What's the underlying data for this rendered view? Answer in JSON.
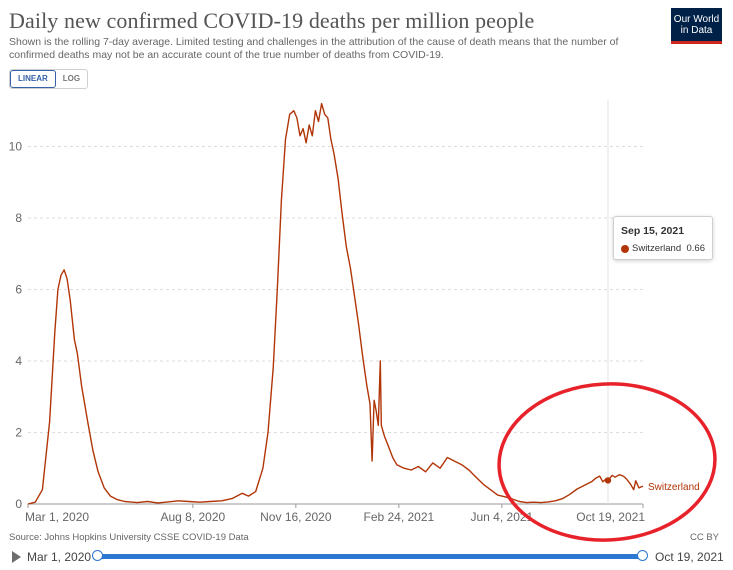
{
  "header": {
    "title": "Daily new confirmed COVID-19 deaths per million people",
    "subtitle": "Shown is the rolling 7-day average. Limited testing and challenges in the attribution of the cause of death means that the number of confirmed deaths may not be an accurate count of the true number of deaths from COVID-19.",
    "logo_line1": "Our World",
    "logo_line2": "in Data"
  },
  "scale_toggle": {
    "linear_label": "LINEAR",
    "log_label": "LOG",
    "selected": "LINEAR"
  },
  "tooltip": {
    "date": "Sep 15, 2021",
    "series": "Switzerland",
    "value": "0.66"
  },
  "footer": {
    "source": "Source: Johns Hopkins University CSSE COVID-19 Data",
    "license": "CC BY"
  },
  "timeline": {
    "start_label": "Mar 1, 2020",
    "end_label": "Oct 19, 2021"
  },
  "colors": {
    "series": "#b13507",
    "annotation_circle": "#e8222a",
    "slider": "#2d76d1",
    "logo_bg": "#002147",
    "logo_accent": "#ce261e"
  },
  "chart_data": {
    "type": "line",
    "title": "Daily new confirmed COVID-19 deaths per million people",
    "ylabel": "",
    "xlabel": "",
    "ylim": [
      0,
      11.3
    ],
    "y_ticks": [
      0,
      2,
      4,
      6,
      8,
      10
    ],
    "x_ticks": [
      "2020-03-01",
      "2020-08-08",
      "2020-11-16",
      "2021-02-24",
      "2021-06-04",
      "2021-10-19"
    ],
    "x_tick_labels": [
      "Mar 1, 2020",
      "Aug 8, 2020",
      "Nov 16, 2020",
      "Feb 24, 2021",
      "Jun 4, 2021",
      "Oct 19, 2021"
    ],
    "x_range": [
      "2020-03-01",
      "2021-10-19"
    ],
    "grid": "horizontal dashed",
    "legend": "inline label at line end",
    "series": [
      {
        "name": "Switzerland",
        "points": [
          [
            "2020-03-01",
            0
          ],
          [
            "2020-03-08",
            0.05
          ],
          [
            "2020-03-15",
            0.4
          ],
          [
            "2020-03-22",
            2.3
          ],
          [
            "2020-03-27",
            4.8
          ],
          [
            "2020-03-30",
            6.0
          ],
          [
            "2020-04-02",
            6.4
          ],
          [
            "2020-04-05",
            6.55
          ],
          [
            "2020-04-08",
            6.3
          ],
          [
            "2020-04-11",
            5.7
          ],
          [
            "2020-04-15",
            4.6
          ],
          [
            "2020-04-18",
            4.2
          ],
          [
            "2020-04-22",
            3.3
          ],
          [
            "2020-04-28",
            2.3
          ],
          [
            "2020-05-03",
            1.5
          ],
          [
            "2020-05-08",
            0.9
          ],
          [
            "2020-05-14",
            0.45
          ],
          [
            "2020-05-20",
            0.22
          ],
          [
            "2020-05-27",
            0.12
          ],
          [
            "2020-06-03",
            0.07
          ],
          [
            "2020-06-15",
            0.04
          ],
          [
            "2020-06-25",
            0.07
          ],
          [
            "2020-07-05",
            0.03
          ],
          [
            "2020-07-15",
            0.06
          ],
          [
            "2020-07-25",
            0.09
          ],
          [
            "2020-08-04",
            0.07
          ],
          [
            "2020-08-15",
            0.05
          ],
          [
            "2020-08-25",
            0.07
          ],
          [
            "2020-09-05",
            0.09
          ],
          [
            "2020-09-15",
            0.15
          ],
          [
            "2020-09-25",
            0.3
          ],
          [
            "2020-10-01",
            0.22
          ],
          [
            "2020-10-08",
            0.35
          ],
          [
            "2020-10-15",
            1.0
          ],
          [
            "2020-10-20",
            2.0
          ],
          [
            "2020-10-25",
            3.8
          ],
          [
            "2020-10-29",
            6.0
          ],
          [
            "2020-11-02",
            8.5
          ],
          [
            "2020-11-06",
            10.2
          ],
          [
            "2020-11-10",
            10.9
          ],
          [
            "2020-11-14",
            11.0
          ],
          [
            "2020-11-17",
            10.8
          ],
          [
            "2020-11-20",
            10.3
          ],
          [
            "2020-11-23",
            10.5
          ],
          [
            "2020-11-26",
            10.1
          ],
          [
            "2020-11-29",
            10.6
          ],
          [
            "2020-12-02",
            10.3
          ],
          [
            "2020-12-05",
            11.0
          ],
          [
            "2020-12-08",
            10.7
          ],
          [
            "2020-12-11",
            11.2
          ],
          [
            "2020-12-14",
            10.9
          ],
          [
            "2020-12-17",
            10.8
          ],
          [
            "2020-12-20",
            10.2
          ],
          [
            "2020-12-23",
            9.8
          ],
          [
            "2020-12-27",
            9.1
          ],
          [
            "2020-12-31",
            8.1
          ],
          [
            "2021-01-04",
            7.2
          ],
          [
            "2021-01-08",
            6.6
          ],
          [
            "2021-01-12",
            5.8
          ],
          [
            "2021-01-16",
            5.0
          ],
          [
            "2021-01-20",
            4.1
          ],
          [
            "2021-01-24",
            3.3
          ],
          [
            "2021-01-27",
            2.8
          ],
          [
            "2021-01-29",
            1.2
          ],
          [
            "2021-01-31",
            2.9
          ],
          [
            "2021-02-02",
            2.6
          ],
          [
            "2021-02-04",
            2.2
          ],
          [
            "2021-02-06",
            4.0
          ],
          [
            "2021-02-07",
            2.2
          ],
          [
            "2021-02-10",
            1.9
          ],
          [
            "2021-02-14",
            1.6
          ],
          [
            "2021-02-18",
            1.3
          ],
          [
            "2021-02-22",
            1.1
          ],
          [
            "2021-03-01",
            1.0
          ],
          [
            "2021-03-08",
            0.95
          ],
          [
            "2021-03-15",
            1.05
          ],
          [
            "2021-03-22",
            0.9
          ],
          [
            "2021-03-29",
            1.15
          ],
          [
            "2021-04-05",
            1.0
          ],
          [
            "2021-04-12",
            1.3
          ],
          [
            "2021-04-19",
            1.2
          ],
          [
            "2021-04-26",
            1.1
          ],
          [
            "2021-05-03",
            0.95
          ],
          [
            "2021-05-10",
            0.75
          ],
          [
            "2021-05-17",
            0.55
          ],
          [
            "2021-05-24",
            0.4
          ],
          [
            "2021-05-31",
            0.25
          ],
          [
            "2021-06-07",
            0.2
          ],
          [
            "2021-06-14",
            0.14
          ],
          [
            "2021-06-21",
            0.07
          ],
          [
            "2021-06-28",
            0.04
          ],
          [
            "2021-07-05",
            0.05
          ],
          [
            "2021-07-12",
            0.04
          ],
          [
            "2021-07-19",
            0.06
          ],
          [
            "2021-07-26",
            0.09
          ],
          [
            "2021-08-02",
            0.15
          ],
          [
            "2021-08-09",
            0.27
          ],
          [
            "2021-08-16",
            0.42
          ],
          [
            "2021-08-23",
            0.52
          ],
          [
            "2021-08-30",
            0.62
          ],
          [
            "2021-09-03",
            0.72
          ],
          [
            "2021-09-07",
            0.78
          ],
          [
            "2021-09-10",
            0.62
          ],
          [
            "2021-09-13",
            0.7
          ],
          [
            "2021-09-15",
            0.66
          ],
          [
            "2021-09-19",
            0.8
          ],
          [
            "2021-09-22",
            0.75
          ],
          [
            "2021-09-26",
            0.82
          ],
          [
            "2021-09-30",
            0.78
          ],
          [
            "2021-10-03",
            0.7
          ],
          [
            "2021-10-07",
            0.55
          ],
          [
            "2021-10-10",
            0.4
          ],
          [
            "2021-10-12",
            0.65
          ],
          [
            "2021-10-15",
            0.45
          ],
          [
            "2021-10-19",
            0.5
          ]
        ]
      }
    ],
    "highlight": {
      "date": "2021-09-15",
      "value": 0.66
    }
  }
}
